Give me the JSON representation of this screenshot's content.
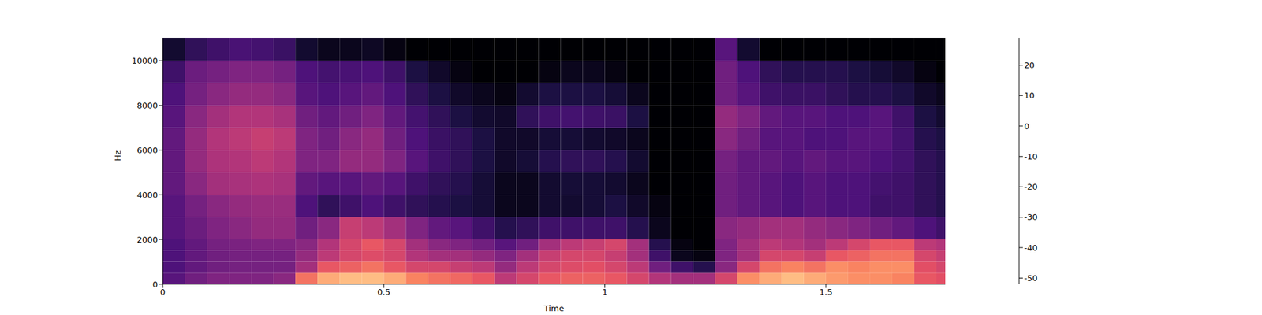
{
  "chart_data": {
    "type": "heatmap",
    "xlabel": "Time",
    "ylabel": "Hz",
    "xlim": [
      0,
      1.77
    ],
    "ylim": [
      0,
      11025
    ],
    "xticks": [
      0,
      0.5,
      1,
      1.5
    ],
    "yticks": [
      0,
      2000,
      4000,
      6000,
      8000,
      10000
    ],
    "x": [
      0,
      0.05,
      0.1,
      0.15,
      0.2,
      0.25,
      0.3,
      0.35,
      0.4,
      0.45,
      0.5,
      0.55,
      0.6,
      0.65,
      0.7,
      0.75,
      0.8,
      0.85,
      0.9,
      0.95,
      1.0,
      1.05,
      1.1,
      1.15,
      1.2,
      1.25,
      1.3,
      1.35,
      1.4,
      1.45,
      1.5,
      1.55,
      1.6,
      1.65,
      1.7,
      1.75,
      1.8
    ],
    "y": [
      0,
      500,
      1000,
      1500,
      2000,
      3000,
      4000,
      5000,
      6000,
      7000,
      8000,
      9000,
      10000,
      11025
    ],
    "cells": [
      [
        -30,
        -32,
        -32,
        -32,
        -30,
        -30,
        -28,
        -28,
        -28,
        -30,
        -32,
        -35,
        -45
      ],
      [
        -25,
        -28,
        -28,
        -28,
        -26,
        -24,
        -20,
        -18,
        -18,
        -20,
        -24,
        -26,
        -38
      ],
      [
        -22,
        -25,
        -25,
        -24,
        -22,
        -20,
        -15,
        -13,
        -12,
        -15,
        -20,
        -24,
        -35
      ],
      [
        -22,
        -24,
        -24,
        -23,
        -20,
        -18,
        -14,
        -12,
        -10,
        -12,
        -18,
        -22,
        -33
      ],
      [
        -22,
        -24,
        -24,
        -22,
        -18,
        -17,
        -13,
        -10,
        -8,
        -12,
        -18,
        -22,
        -34
      ],
      [
        -20,
        -24,
        -24,
        -22,
        -18,
        -17,
        -14,
        -12,
        -10,
        -14,
        -20,
        -24,
        -36
      ],
      [
        5,
        -15,
        -18,
        -20,
        -25,
        -32,
        -28,
        -22,
        -22,
        -25,
        -30,
        -32,
        -45
      ],
      [
        15,
        0,
        -10,
        -12,
        -20,
        -38,
        -30,
        -22,
        -25,
        -28,
        -32,
        -34,
        -48
      ],
      [
        18,
        2,
        -5,
        -5,
        -8,
        -35,
        -30,
        -18,
        -20,
        -25,
        -30,
        -33,
        -48
      ],
      [
        18,
        5,
        -3,
        0,
        -10,
        -32,
        -28,
        -18,
        -18,
        -22,
        -28,
        -32,
        -47
      ],
      [
        15,
        0,
        -5,
        -5,
        -15,
        -35,
        -30,
        -22,
        -25,
        -28,
        -32,
        -35,
        -50
      ],
      [
        8,
        -5,
        -12,
        -15,
        -22,
        -38,
        -35,
        -30,
        -32,
        -34,
        -38,
        -42,
        -52
      ],
      [
        5,
        -5,
        -15,
        -20,
        -28,
        -40,
        -38,
        -35,
        -36,
        -38,
        -42,
        -46,
        -52
      ],
      [
        3,
        -8,
        -15,
        -22,
        -30,
        -42,
        -40,
        -38,
        -38,
        -42,
        -46,
        -50,
        -52
      ],
      [
        0,
        -10,
        -18,
        -25,
        -35,
        -44,
        -44,
        -42,
        -42,
        -45,
        -48,
        -52,
        -52
      ],
      [
        -10,
        -18,
        -22,
        -30,
        -40,
        -48,
        -48,
        -46,
        -46,
        -46,
        -50,
        -52,
        -52
      ],
      [
        -5,
        -10,
        -15,
        -25,
        -38,
        -48,
        -48,
        -44,
        -46,
        -38,
        -45,
        -52,
        -52
      ],
      [
        0,
        -5,
        -8,
        -15,
        -35,
        -45,
        -45,
        -40,
        -44,
        -35,
        -42,
        -50,
        -52
      ],
      [
        2,
        -3,
        -5,
        -10,
        -35,
        -45,
        -44,
        -38,
        -44,
        -34,
        -42,
        -48,
        -52
      ],
      [
        2,
        -2,
        -5,
        -8,
        -35,
        -44,
        -44,
        -38,
        -45,
        -35,
        -42,
        -48,
        -52
      ],
      [
        0,
        -5,
        -8,
        -5,
        -35,
        -42,
        -45,
        -40,
        -46,
        -36,
        -44,
        -50,
        -52
      ],
      [
        -5,
        -10,
        -15,
        -15,
        -40,
        -46,
        -48,
        -45,
        -48,
        -42,
        -48,
        -52,
        -52
      ],
      [
        -12,
        -25,
        -35,
        -40,
        -48,
        -50,
        -52,
        -52,
        -52,
        -52,
        -52,
        -52,
        -52
      ],
      [
        -15,
        -35,
        -48,
        -50,
        -52,
        -52,
        -52,
        -52,
        -52,
        -52,
        -52,
        -52,
        -52
      ],
      [
        -15,
        -40,
        -50,
        -52,
        -52,
        -52,
        -52,
        -52,
        -52,
        -52,
        -52,
        -52,
        -52
      ],
      [
        -5,
        -20,
        -22,
        -22,
        -20,
        -25,
        -25,
        -24,
        -20,
        -18,
        -25,
        -25,
        -30
      ],
      [
        10,
        -5,
        -15,
        -15,
        -18,
        -28,
        -28,
        -28,
        -25,
        -22,
        -30,
        -32,
        -45
      ],
      [
        15,
        5,
        -5,
        -10,
        -15,
        -30,
        -30,
        -28,
        -30,
        -28,
        -35,
        -38,
        -52
      ],
      [
        18,
        8,
        -5,
        -12,
        -15,
        -32,
        -32,
        -30,
        -30,
        -30,
        -36,
        -40,
        -52
      ],
      [
        15,
        5,
        -8,
        -15,
        -18,
        -30,
        -30,
        -28,
        -32,
        -30,
        -36,
        -40,
        -52
      ],
      [
        12,
        10,
        0,
        -10,
        -20,
        -32,
        -32,
        -30,
        -32,
        -32,
        -38,
        -40,
        -52
      ],
      [
        10,
        8,
        2,
        -5,
        -22,
        -32,
        -32,
        -30,
        -30,
        -32,
        -40,
        -42,
        -52
      ],
      [
        10,
        10,
        5,
        0,
        -25,
        -35,
        -34,
        -32,
        -30,
        -30,
        -40,
        -44,
        -52
      ],
      [
        8,
        10,
        5,
        0,
        -28,
        -35,
        -35,
        -34,
        -34,
        -35,
        -42,
        -46,
        -52
      ],
      [
        0,
        -2,
        -5,
        -10,
        -32,
        -38,
        -38,
        -38,
        -40,
        -42,
        -46,
        -50,
        -52
      ],
      [
        -2,
        -5,
        -8,
        -12,
        -35,
        -40,
        -40,
        -40,
        -42,
        -45,
        -48,
        -52,
        -52
      ]
    ],
    "colorbar": {
      "range": [
        -52,
        29
      ],
      "ticks": [
        20,
        10,
        0,
        -10,
        -20,
        -30,
        -40,
        -50
      ]
    }
  }
}
